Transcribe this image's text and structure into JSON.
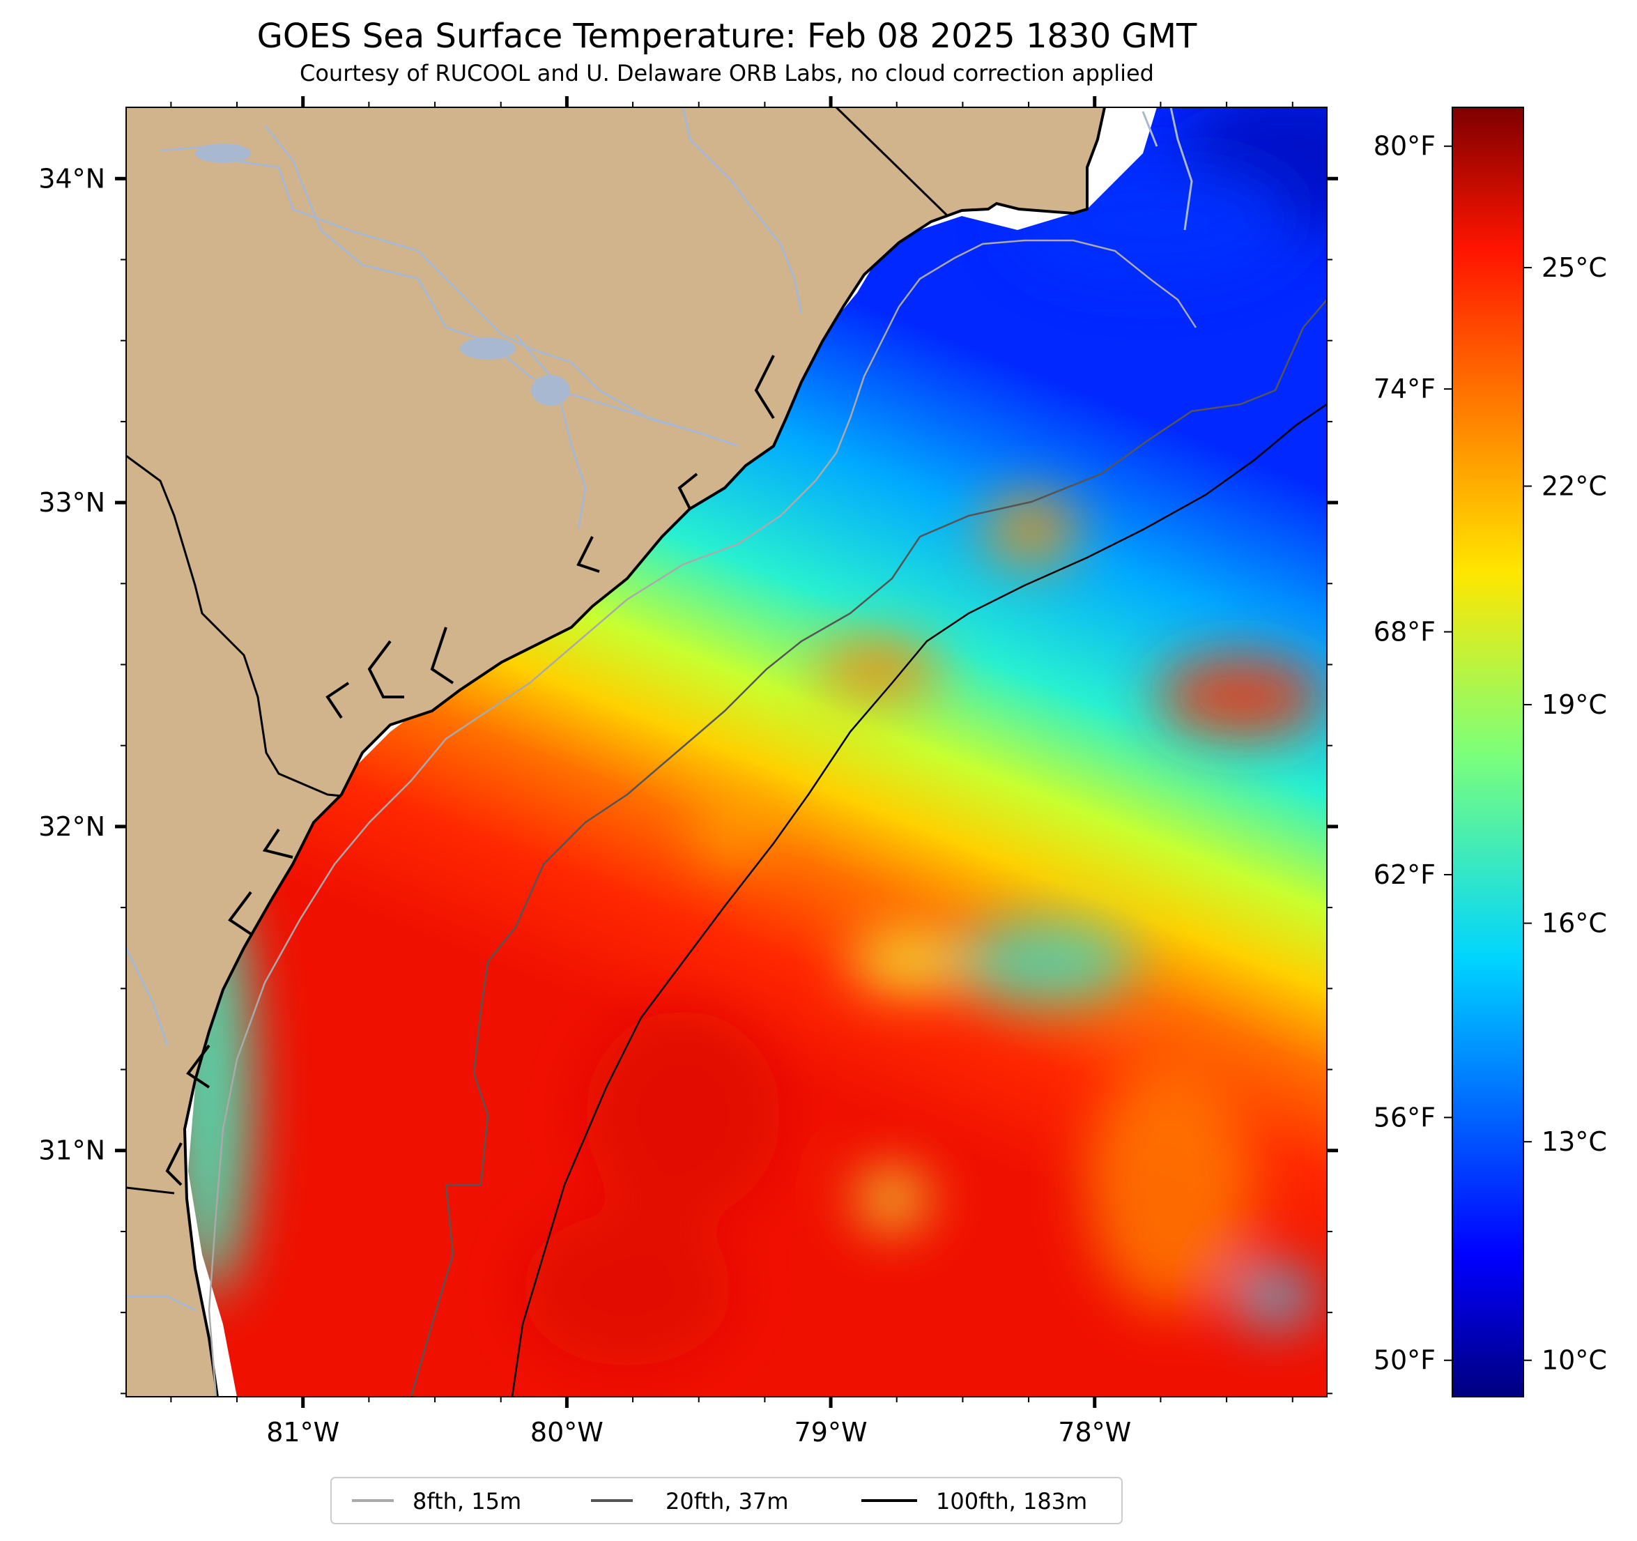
{
  "title": "GOES Sea Surface Temperature: Feb 08 2025 1830 GMT",
  "subtitle": "Courtesy of RUCOOL and U. Delaware ORB Labs, no cloud correction applied",
  "map": {
    "lon_range": [
      -81.67,
      -77.12
    ],
    "lat_range": [
      30.24,
      34.22
    ],
    "lon_ticks": [
      {
        "value": -81,
        "label": "81°W"
      },
      {
        "value": -80,
        "label": "80°W"
      },
      {
        "value": -79,
        "label": "79°W"
      },
      {
        "value": -78,
        "label": "78°W"
      }
    ],
    "lat_ticks": [
      {
        "value": 34,
        "label": "34°N"
      },
      {
        "value": 33,
        "label": "33°N"
      },
      {
        "value": 32,
        "label": "32°N"
      },
      {
        "value": 31,
        "label": "31°N"
      }
    ],
    "land_color": "#d2b48c",
    "river_color": "#a8b8d0"
  },
  "colorbar": {
    "colormap": "jet",
    "range_c": [
      9.5,
      27.2
    ],
    "celsius_ticks": [
      {
        "value": 10,
        "label": "10°C"
      },
      {
        "value": 13,
        "label": "13°C"
      },
      {
        "value": 16,
        "label": "16°C"
      },
      {
        "value": 19,
        "label": "19°C"
      },
      {
        "value": 22,
        "label": "22°C"
      },
      {
        "value": 25,
        "label": "25°C"
      }
    ],
    "fahrenheit_ticks": [
      {
        "value": 50,
        "label": "50°F"
      },
      {
        "value": 56,
        "label": "56°F"
      },
      {
        "value": 62,
        "label": "62°F"
      },
      {
        "value": 68,
        "label": "68°F"
      },
      {
        "value": 74,
        "label": "74°F"
      },
      {
        "value": 80,
        "label": "80°F"
      }
    ]
  },
  "legend": {
    "entries": [
      {
        "label": "8fth, 15m",
        "color": "#aaaaaa"
      },
      {
        "label": "20fth, 37m",
        "color": "#555555"
      },
      {
        "label": "100fth, 183m",
        "color": "#000000"
      }
    ]
  }
}
